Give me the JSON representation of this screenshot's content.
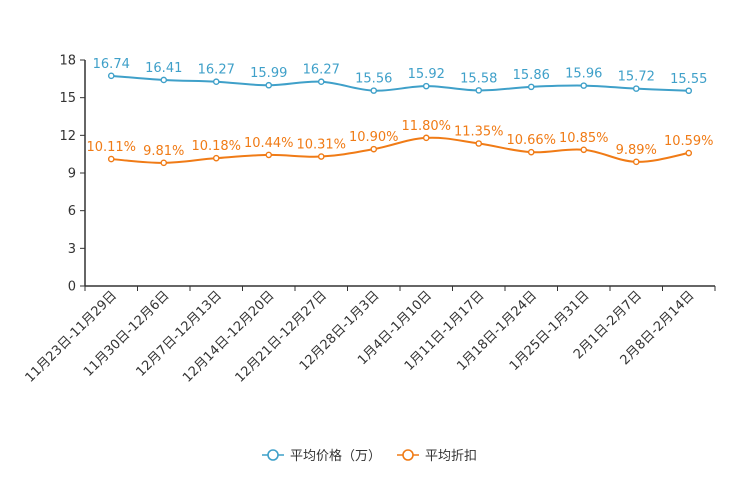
{
  "chart_data": {
    "type": "line",
    "categories": [
      "11月23日-11月29日",
      "11月30日-12月6日",
      "12月7日-12月13日",
      "12月14日-12月20日",
      "12月21日-12月27日",
      "12月28日-1月3日",
      "1月4日-1月10日",
      "1月11日-1月17日",
      "1月18日-1月24日",
      "1月25日-1月31日",
      "2月1日-2月7日",
      "2月8日-2月14日"
    ],
    "ylim": [
      0,
      18
    ],
    "yticks": [
      0,
      3,
      6,
      9,
      12,
      15,
      18
    ],
    "series": [
      {
        "name": "平均价格（万）",
        "color": "#3fa0c9",
        "values": [
          16.74,
          16.41,
          16.27,
          15.99,
          16.27,
          15.56,
          15.92,
          15.58,
          15.86,
          15.96,
          15.72,
          15.55
        ],
        "labels": [
          "16.74",
          "16.41",
          "16.27",
          "15.99",
          "16.27",
          "15.56",
          "15.92",
          "15.58",
          "15.86",
          "15.96",
          "15.72",
          "15.55"
        ]
      },
      {
        "name": "平均折扣",
        "color": "#f07b16",
        "values": [
          10.11,
          9.81,
          10.18,
          10.44,
          10.31,
          10.9,
          11.8,
          11.35,
          10.66,
          10.85,
          9.89,
          10.59
        ],
        "labels": [
          "10.11%",
          "9.81%",
          "10.18%",
          "10.44%",
          "10.31%",
          "10.90%",
          "11.80%",
          "11.35%",
          "10.66%",
          "10.85%",
          "9.89%",
          "10.59%"
        ]
      }
    ],
    "legend_position": "bottom-center",
    "grid": false
  }
}
